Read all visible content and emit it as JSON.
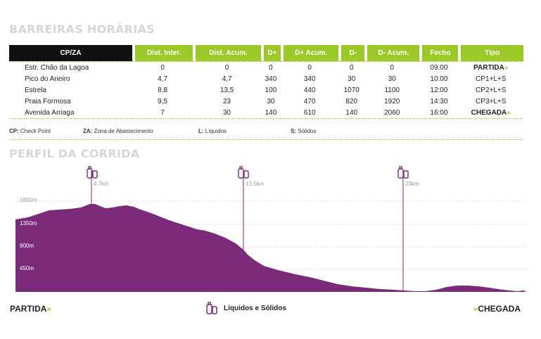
{
  "header1": "BARREIRAS HORÁRIAS",
  "header2": "PERFIL DA CORRIDA",
  "table": {
    "columns": [
      "CP/ZA",
      "Dist. Inter.",
      "Dist. Acum.",
      "D+",
      "D+ Acum.",
      "D-",
      "D- Acum.",
      "Fecho",
      "Tipo"
    ],
    "rows": [
      [
        "Estr. Chão da Lagoa",
        "0",
        "0",
        "0",
        "0",
        "0",
        "0",
        "09:00",
        "PARTIDA"
      ],
      [
        "Pico do Arieiro",
        "4,7",
        "4,7",
        "340",
        "340",
        "30",
        "30",
        "10:00",
        "CP1+L+S"
      ],
      [
        "Estrela",
        "8,8",
        "13,5",
        "100",
        "440",
        "1070",
        "1100",
        "12:00",
        "CP2+L+S"
      ],
      [
        "Praia Formosa",
        "9,5",
        "23",
        "30",
        "470",
        "820",
        "1920",
        "14:30",
        "CP3+L+S"
      ],
      [
        "Avenida Arriaga",
        "7",
        "30",
        "140",
        "610",
        "140",
        "2060",
        "16:00",
        "CHEGADA"
      ]
    ],
    "start_arrow": "»",
    "finish_arrow": "«"
  },
  "legend": {
    "cp_key": "CP:",
    "cp_text": "Check Point",
    "za_key": "ZA:",
    "za_text": "Zona de Abastecimento",
    "l_key": "L:",
    "l_text": "Líquidos",
    "s_key": "S:",
    "s_text": "Sólidos"
  },
  "profile": {
    "y_labels": [
      "1800m",
      "1350m",
      "900m",
      "450m"
    ],
    "markers": [
      "4.7km",
      "13.5km",
      "23km"
    ],
    "fill_color": "#7b2a79",
    "accent_color": "#9cc828"
  },
  "footer": {
    "start": "PARTIDA",
    "start_arrow": "»",
    "legend_label": "Líquidos e Sólidos",
    "finish": "CHEGADA",
    "finish_arrow": "»"
  }
}
